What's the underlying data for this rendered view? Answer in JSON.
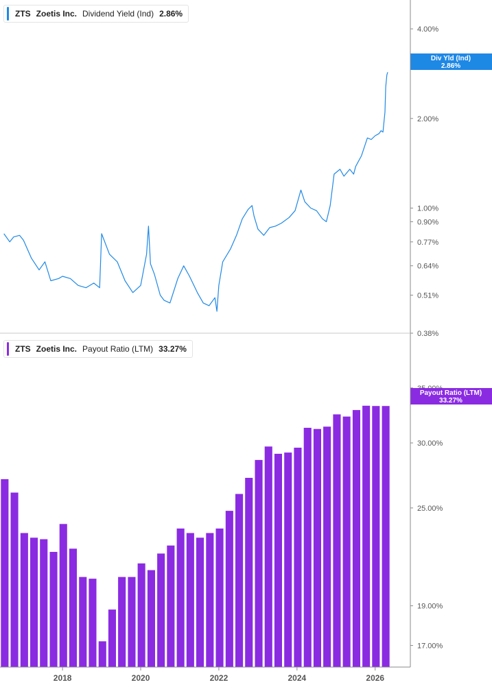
{
  "colors": {
    "yield": "#1e88e5",
    "payout": "#8a2be2",
    "axis": "#8a8a8a",
    "grid": "#eeeeee",
    "text": "#555555"
  },
  "x_axis_labels": [
    "2018",
    "2020",
    "2022",
    "2024",
    "2026"
  ],
  "chart_data": [
    {
      "type": "line",
      "ticker": "ZTS",
      "company": "Zoetis Inc.",
      "metric": "Dividend Yield (Ind)",
      "current_value": "2.86%",
      "badge_label": "Div Yld (Ind)",
      "badge_value": "2.86%",
      "y_scale": "log",
      "y_tick_labels": [
        "4.00%",
        "2.00%",
        "1.00%",
        "0.90%",
        "0.77%",
        "0.64%",
        "0.51%",
        "0.38%"
      ],
      "y_tick_values": [
        4.0,
        2.0,
        1.0,
        0.9,
        0.77,
        0.64,
        0.51,
        0.38
      ],
      "xlim": [
        2016.4,
        2026.9
      ],
      "ylim": [
        0.38,
        5.0
      ],
      "x": [
        2016.5,
        2016.65,
        2016.75,
        2016.9,
        2017.0,
        2017.2,
        2017.4,
        2017.55,
        2017.7,
        2017.9,
        2018.0,
        2018.2,
        2018.4,
        2018.6,
        2018.8,
        2018.95,
        2019.0,
        2019.2,
        2019.4,
        2019.6,
        2019.8,
        2020.0,
        2020.15,
        2020.2,
        2020.25,
        2020.35,
        2020.5,
        2020.6,
        2020.75,
        2020.95,
        2021.1,
        2021.25,
        2021.45,
        2021.6,
        2021.75,
        2021.9,
        2021.95,
        2022.0,
        2022.1,
        2022.3,
        2022.45,
        2022.6,
        2022.75,
        2022.85,
        2022.9,
        2023.0,
        2023.15,
        2023.3,
        2023.45,
        2023.6,
        2023.8,
        2023.95,
        2024.1,
        2024.2,
        2024.35,
        2024.5,
        2024.65,
        2024.75,
        2024.85,
        2024.95,
        2025.1,
        2025.2,
        2025.35,
        2025.45,
        2025.5,
        2025.65,
        2025.8,
        2025.9,
        2026.0,
        2026.1,
        2026.15,
        2026.2,
        2026.25,
        2026.27,
        2026.3,
        2026.32
      ],
      "values": [
        0.82,
        0.77,
        0.8,
        0.81,
        0.78,
        0.68,
        0.62,
        0.66,
        0.57,
        0.58,
        0.59,
        0.58,
        0.55,
        0.54,
        0.56,
        0.54,
        0.82,
        0.7,
        0.66,
        0.57,
        0.52,
        0.55,
        0.7,
        0.87,
        0.65,
        0.6,
        0.51,
        0.49,
        0.48,
        0.58,
        0.64,
        0.59,
        0.52,
        0.48,
        0.47,
        0.5,
        0.45,
        0.55,
        0.66,
        0.73,
        0.81,
        0.92,
        0.99,
        1.02,
        0.94,
        0.85,
        0.81,
        0.86,
        0.87,
        0.89,
        0.93,
        0.98,
        1.15,
        1.05,
        1.0,
        0.98,
        0.92,
        0.9,
        1.02,
        1.3,
        1.35,
        1.28,
        1.35,
        1.3,
        1.38,
        1.5,
        1.72,
        1.7,
        1.75,
        1.78,
        1.82,
        1.8,
        2.1,
        2.55,
        2.8,
        2.86
      ]
    },
    {
      "type": "bar",
      "ticker": "ZTS",
      "company": "Zoetis Inc.",
      "metric": "Payout Ratio (LTM)",
      "current_value": "33.27%",
      "badge_label": "Payout Ratio (LTM)",
      "badge_value": "33.27%",
      "y_scale": "log",
      "y_tick_labels": [
        "35.00%",
        "30.00%",
        "25.00%",
        "19.00%",
        "17.00%"
      ],
      "y_tick_values": [
        35.0,
        30.0,
        25.0,
        19.0,
        17.0
      ],
      "xlim": [
        2016.4,
        2026.9
      ],
      "ylim": [
        16.0,
        37.5
      ],
      "x": [
        2016.52,
        2016.77,
        2017.02,
        2017.27,
        2017.52,
        2017.77,
        2018.02,
        2018.27,
        2018.52,
        2018.77,
        2019.02,
        2019.27,
        2019.52,
        2019.77,
        2020.02,
        2020.27,
        2020.52,
        2020.77,
        2021.02,
        2021.27,
        2021.52,
        2021.77,
        2022.02,
        2022.27,
        2022.52,
        2022.77,
        2023.02,
        2023.27,
        2023.52,
        2023.77,
        2024.02,
        2024.27,
        2024.52,
        2024.77,
        2025.02,
        2025.27,
        2025.52,
        2025.77,
        2026.02,
        2026.27
      ],
      "values": [
        27.1,
        26.1,
        23.3,
        23.0,
        22.9,
        22.1,
        23.9,
        22.3,
        20.6,
        20.5,
        17.2,
        18.8,
        20.6,
        20.6,
        21.4,
        21.0,
        22.0,
        22.5,
        23.6,
        23.3,
        23.0,
        23.3,
        23.6,
        24.8,
        26.0,
        27.2,
        28.6,
        29.7,
        29.1,
        29.2,
        29.6,
        31.3,
        31.2,
        31.4,
        32.5,
        32.3,
        32.9,
        33.3,
        33.27,
        33.27
      ]
    }
  ]
}
